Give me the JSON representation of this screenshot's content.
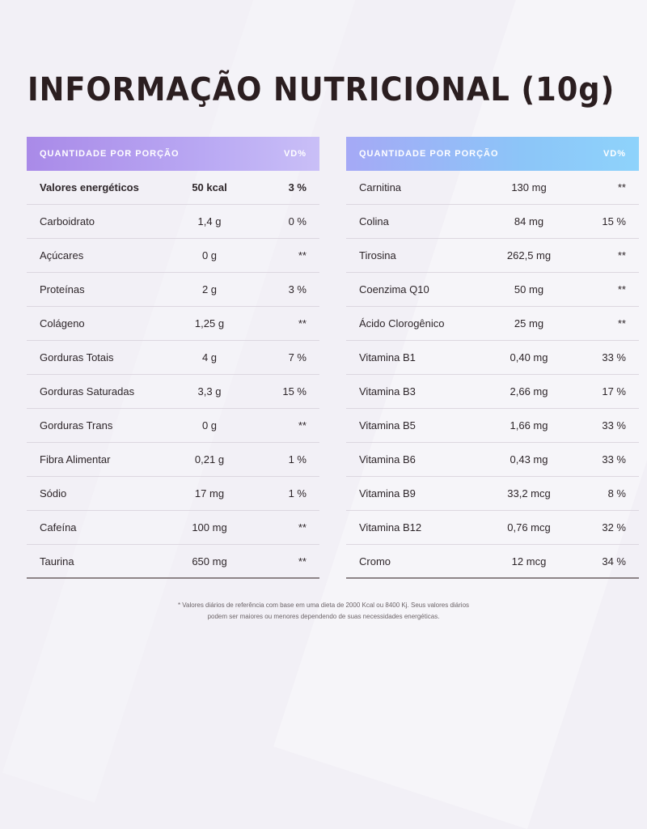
{
  "title": "INFORMAÇÃO NUTRICIONAL (10g)",
  "left_table": {
    "header": {
      "name": "QUANTIDADE POR PORÇÃO",
      "vd": "VD%"
    },
    "rows": [
      {
        "name": "Valores energéticos",
        "qty": "50 kcal",
        "vd": "3 %"
      },
      {
        "name": "Carboidrato",
        "qty": "1,4 g",
        "vd": "0 %"
      },
      {
        "name": "Açúcares",
        "qty": "0 g",
        "vd": "**"
      },
      {
        "name": "Proteínas",
        "qty": "2 g",
        "vd": "3 %"
      },
      {
        "name": "Colágeno",
        "qty": "1,25 g",
        "vd": "**"
      },
      {
        "name": "Gorduras Totais",
        "qty": "4 g",
        "vd": "7 %"
      },
      {
        "name": "Gorduras Saturadas",
        "qty": "3,3 g",
        "vd": "15 %"
      },
      {
        "name": "Gorduras Trans",
        "qty": "0 g",
        "vd": "**"
      },
      {
        "name": "Fibra Alimentar",
        "qty": "0,21 g",
        "vd": "1 %"
      },
      {
        "name": "Sódio",
        "qty": "17 mg",
        "vd": "1 %"
      },
      {
        "name": "Cafeína",
        "qty": "100 mg",
        "vd": "**"
      },
      {
        "name": "Taurina",
        "qty": "650 mg",
        "vd": "**"
      }
    ]
  },
  "right_table": {
    "header": {
      "name": "QUANTIDADE POR PORÇÃO",
      "vd": "VD%"
    },
    "rows": [
      {
        "name": "Carnitina",
        "qty": "130 mg",
        "vd": "**"
      },
      {
        "name": "Colina",
        "qty": "84 mg",
        "vd": "15 %"
      },
      {
        "name": "Tirosina",
        "qty": "262,5 mg",
        "vd": "**"
      },
      {
        "name": "Coenzima Q10",
        "qty": "50 mg",
        "vd": "**"
      },
      {
        "name": "Ácido Clorogênico",
        "qty": "25 mg",
        "vd": "**"
      },
      {
        "name": "Vitamina B1",
        "qty": "0,40 mg",
        "vd": "33 %"
      },
      {
        "name": "Vitamina B3",
        "qty": "2,66 mg",
        "vd": "17 %"
      },
      {
        "name": "Vitamina B5",
        "qty": "1,66 mg",
        "vd": "33 %"
      },
      {
        "name": "Vitamina B6",
        "qty": "0,43 mg",
        "vd": "33 %"
      },
      {
        "name": "Vitamina B9",
        "qty": "33,2 mcg",
        "vd": "8 %"
      },
      {
        "name": "Vitamina B12",
        "qty": "0,76 mcg",
        "vd": "32 %"
      },
      {
        "name": "Cromo",
        "qty": "12 mcg",
        "vd": "34 %"
      }
    ]
  },
  "footnote": {
    "line1": "* Valores diários de referência com base em uma dieta de 2000 Kcal ou 8400 Kj. Seus valores diários",
    "line2": "podem ser maiores ou menores dependendo de suas necessidades energéticas."
  }
}
